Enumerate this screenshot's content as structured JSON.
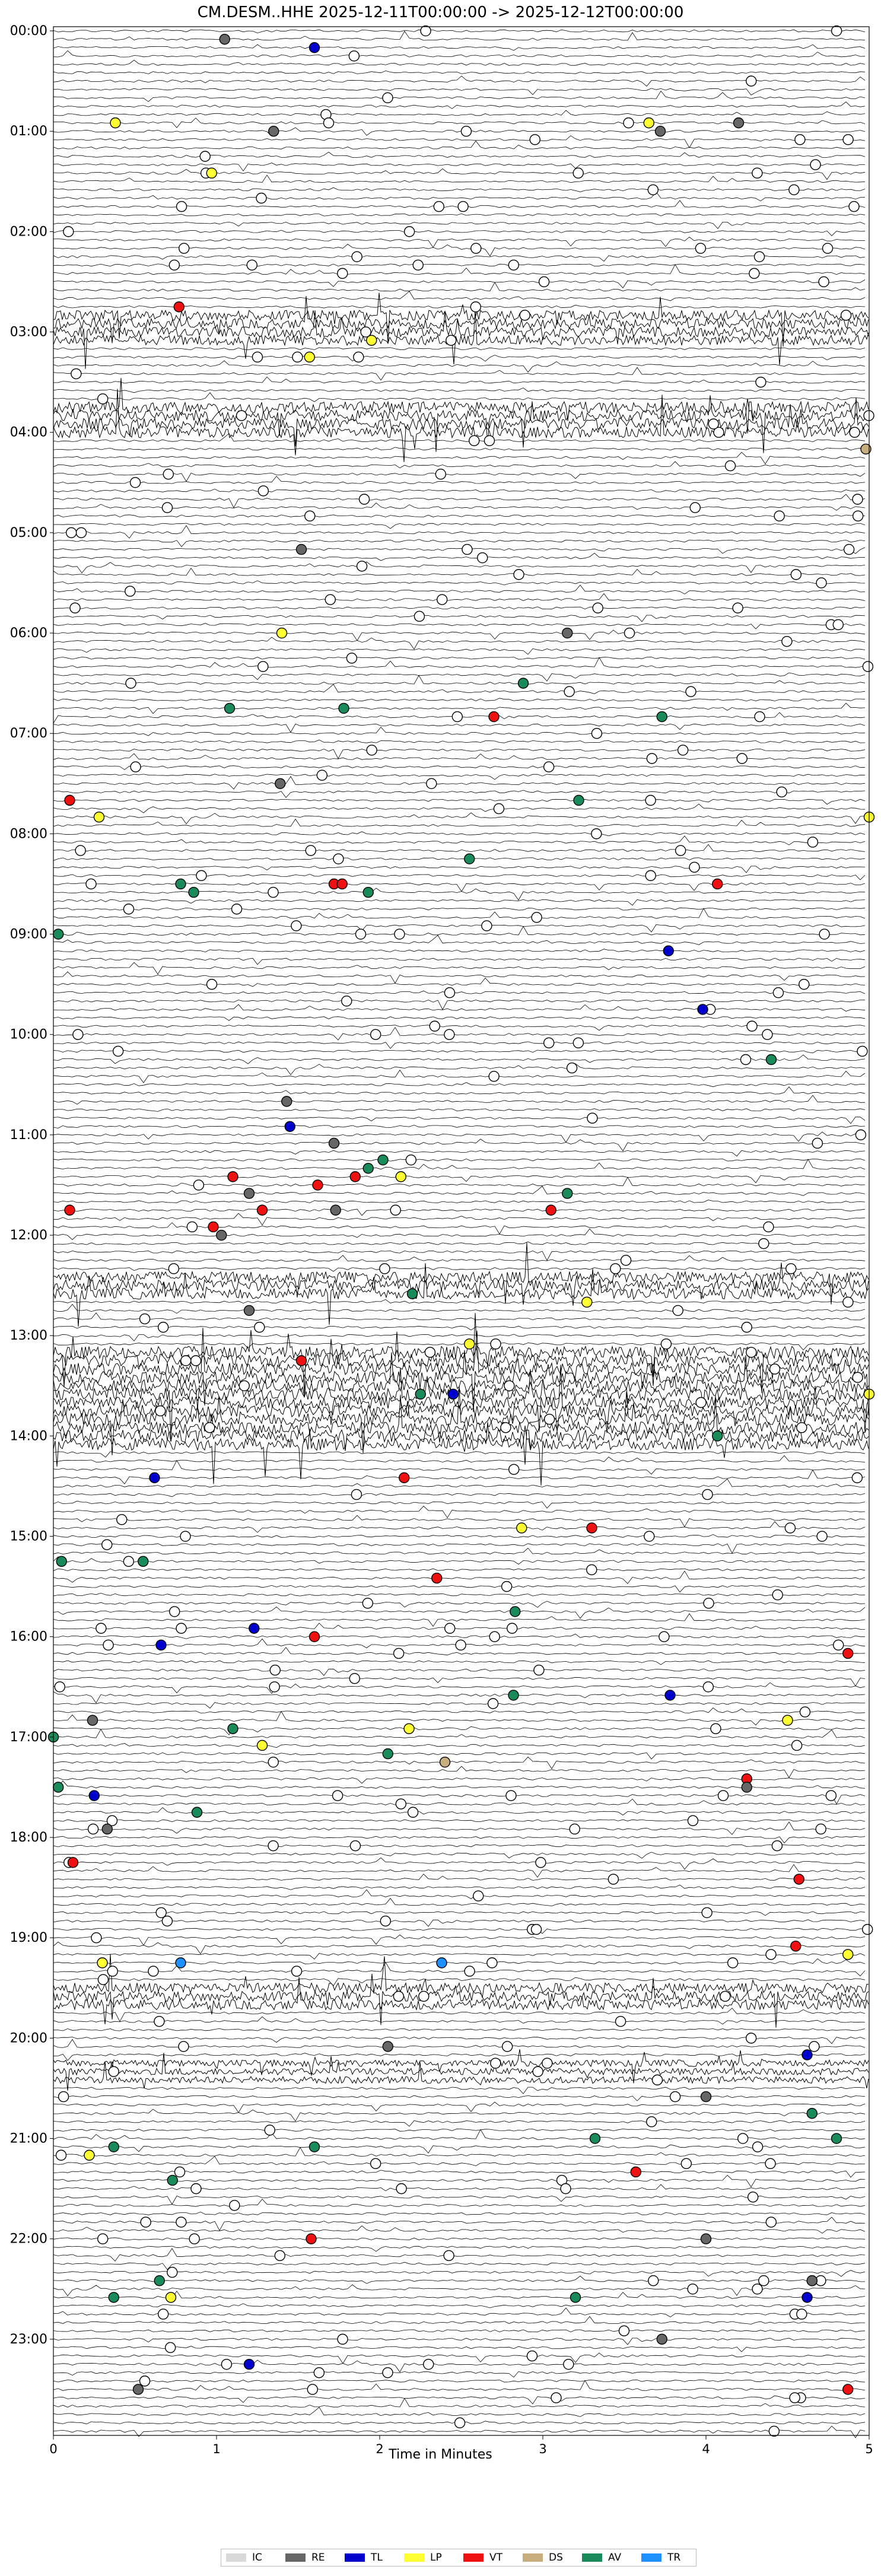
{
  "chart_data": {
    "type": "helicorder",
    "title": "CM.DESM..HHE  2025-12-11T00:00:00 -> 2025-12-12T00:00:00",
    "xlabel": "Time in Minutes",
    "x_ticks": [
      "0",
      "1",
      "2",
      "3",
      "4",
      "5"
    ],
    "xlim": [
      0,
      5
    ],
    "y_ticks": [
      "00:00",
      "01:00",
      "02:00",
      "03:00",
      "04:00",
      "05:00",
      "06:00",
      "07:00",
      "08:00",
      "09:00",
      "10:00",
      "11:00",
      "12:00",
      "13:00",
      "14:00",
      "15:00",
      "16:00",
      "17:00",
      "18:00",
      "19:00",
      "20:00",
      "21:00",
      "22:00",
      "23:00"
    ],
    "traces_per_hour": 12,
    "minutes_per_trace": 5,
    "legend": [
      {
        "code": "IC",
        "color": "#d9d9d9"
      },
      {
        "code": "RE",
        "color": "#666666"
      },
      {
        "code": "TL",
        "color": "#0000cc"
      },
      {
        "code": "LP",
        "color": "#ffff33"
      },
      {
        "code": "VT",
        "color": "#ee1111"
      },
      {
        "code": "DS",
        "color": "#c8ad7f"
      },
      {
        "code": "AV",
        "color": "#1a8a5a"
      },
      {
        "code": "TR",
        "color": "#1e90ff"
      }
    ],
    "activity_windows": [
      {
        "start": "02:50",
        "end": "03:05",
        "amplitude": 0.8
      },
      {
        "start": "03:45",
        "end": "04:00",
        "amplitude": 0.9
      },
      {
        "start": "12:25",
        "end": "12:35",
        "amplitude": 0.9
      },
      {
        "start": "13:10",
        "end": "14:05",
        "amplitude": 1.0
      },
      {
        "start": "19:30",
        "end": "19:40",
        "amplitude": 0.8
      },
      {
        "start": "20:15",
        "end": "20:25",
        "amplitude": 0.5
      }
    ],
    "events": [
      {
        "t": "00:05",
        "x": 1.05,
        "cls": "RE"
      },
      {
        "t": "00:10",
        "x": 1.6,
        "cls": "TL"
      },
      {
        "t": "00:55",
        "x": 0.38,
        "cls": "LP"
      },
      {
        "t": "00:55",
        "x": 3.65,
        "cls": "LP"
      },
      {
        "t": "00:55",
        "x": 4.2,
        "cls": "RE"
      },
      {
        "t": "01:00",
        "x": 1.35,
        "cls": "RE"
      },
      {
        "t": "01:00",
        "x": 3.72,
        "cls": "RE"
      },
      {
        "t": "01:25",
        "x": 0.97,
        "cls": "LP"
      },
      {
        "t": "02:45",
        "x": 0.77,
        "cls": "VT"
      },
      {
        "t": "03:05",
        "x": 1.95,
        "cls": "LP"
      },
      {
        "t": "03:15",
        "x": 1.57,
        "cls": "LP"
      },
      {
        "t": "04:10",
        "x": 4.98,
        "cls": "DS"
      },
      {
        "t": "05:10",
        "x": 1.52,
        "cls": "RE"
      },
      {
        "t": "06:00",
        "x": 1.4,
        "cls": "LP"
      },
      {
        "t": "06:00",
        "x": 3.15,
        "cls": "RE"
      },
      {
        "t": "06:30",
        "x": 2.88,
        "cls": "AV"
      },
      {
        "t": "06:45",
        "x": 1.08,
        "cls": "AV"
      },
      {
        "t": "06:45",
        "x": 1.78,
        "cls": "AV"
      },
      {
        "t": "06:50",
        "x": 2.7,
        "cls": "VT"
      },
      {
        "t": "06:50",
        "x": 3.73,
        "cls": "AV"
      },
      {
        "t": "07:30",
        "x": 1.39,
        "cls": "RE"
      },
      {
        "t": "07:40",
        "x": 0.1,
        "cls": "VT"
      },
      {
        "t": "07:40",
        "x": 3.22,
        "cls": "AV"
      },
      {
        "t": "07:50",
        "x": 0.28,
        "cls": "LP"
      },
      {
        "t": "07:50",
        "x": 5.0,
        "cls": "LP"
      },
      {
        "t": "08:15",
        "x": 2.55,
        "cls": "AV"
      },
      {
        "t": "08:30",
        "x": 0.78,
        "cls": "AV"
      },
      {
        "t": "08:30",
        "x": 1.72,
        "cls": "VT"
      },
      {
        "t": "08:30",
        "x": 1.77,
        "cls": "VT"
      },
      {
        "t": "08:30",
        "x": 4.07,
        "cls": "VT"
      },
      {
        "t": "08:35",
        "x": 0.86,
        "cls": "AV"
      },
      {
        "t": "08:35",
        "x": 1.93,
        "cls": "AV"
      },
      {
        "t": "09:00",
        "x": 0.03,
        "cls": "AV"
      },
      {
        "t": "09:10",
        "x": 3.77,
        "cls": "TL"
      },
      {
        "t": "09:45",
        "x": 3.98,
        "cls": "TL"
      },
      {
        "t": "10:15",
        "x": 4.4,
        "cls": "AV"
      },
      {
        "t": "10:40",
        "x": 1.43,
        "cls": "RE"
      },
      {
        "t": "10:55",
        "x": 1.45,
        "cls": "TL"
      },
      {
        "t": "11:05",
        "x": 1.72,
        "cls": "RE"
      },
      {
        "t": "11:15",
        "x": 2.02,
        "cls": "AV"
      },
      {
        "t": "11:20",
        "x": 1.93,
        "cls": "AV"
      },
      {
        "t": "11:25",
        "x": 1.1,
        "cls": "VT"
      },
      {
        "t": "11:25",
        "x": 1.85,
        "cls": "VT"
      },
      {
        "t": "11:25",
        "x": 2.13,
        "cls": "LP"
      },
      {
        "t": "11:30",
        "x": 1.62,
        "cls": "VT"
      },
      {
        "t": "11:35",
        "x": 1.2,
        "cls": "RE"
      },
      {
        "t": "11:35",
        "x": 3.15,
        "cls": "AV"
      },
      {
        "t": "11:45",
        "x": 0.1,
        "cls": "VT"
      },
      {
        "t": "11:45",
        "x": 1.28,
        "cls": "VT"
      },
      {
        "t": "11:45",
        "x": 1.73,
        "cls": "RE"
      },
      {
        "t": "11:45",
        "x": 3.05,
        "cls": "VT"
      },
      {
        "t": "11:55",
        "x": 0.98,
        "cls": "VT"
      },
      {
        "t": "12:00",
        "x": 1.03,
        "cls": "RE"
      },
      {
        "t": "12:35",
        "x": 2.2,
        "cls": "AV"
      },
      {
        "t": "12:40",
        "x": 3.27,
        "cls": "LP"
      },
      {
        "t": "12:45",
        "x": 1.2,
        "cls": "RE"
      },
      {
        "t": "13:05",
        "x": 2.55,
        "cls": "LP"
      },
      {
        "t": "13:15",
        "x": 1.52,
        "cls": "VT"
      },
      {
        "t": "13:35",
        "x": 2.25,
        "cls": "AV"
      },
      {
        "t": "13:35",
        "x": 2.45,
        "cls": "TL"
      },
      {
        "t": "13:35",
        "x": 5.0,
        "cls": "LP"
      },
      {
        "t": "14:00",
        "x": 4.07,
        "cls": "AV"
      },
      {
        "t": "14:25",
        "x": 0.62,
        "cls": "TL"
      },
      {
        "t": "14:25",
        "x": 2.15,
        "cls": "VT"
      },
      {
        "t": "14:55",
        "x": 2.87,
        "cls": "LP"
      },
      {
        "t": "14:55",
        "x": 3.3,
        "cls": "VT"
      },
      {
        "t": "15:15",
        "x": 0.05,
        "cls": "AV"
      },
      {
        "t": "15:15",
        "x": 0.55,
        "cls": "AV"
      },
      {
        "t": "15:25",
        "x": 2.35,
        "cls": "VT"
      },
      {
        "t": "15:45",
        "x": 2.83,
        "cls": "AV"
      },
      {
        "t": "15:55",
        "x": 1.23,
        "cls": "TL"
      },
      {
        "t": "16:00",
        "x": 1.6,
        "cls": "VT"
      },
      {
        "t": "16:05",
        "x": 0.66,
        "cls": "TL"
      },
      {
        "t": "16:10",
        "x": 4.87,
        "cls": "VT"
      },
      {
        "t": "16:35",
        "x": 3.78,
        "cls": "TL"
      },
      {
        "t": "16:35",
        "x": 2.82,
        "cls": "AV"
      },
      {
        "t": "16:50",
        "x": 0.24,
        "cls": "RE"
      },
      {
        "t": "16:50",
        "x": 4.5,
        "cls": "LP"
      },
      {
        "t": "16:55",
        "x": 1.1,
        "cls": "AV"
      },
      {
        "t": "16:55",
        "x": 2.18,
        "cls": "LP"
      },
      {
        "t": "17:00",
        "x": 0.0,
        "cls": "AV"
      },
      {
        "t": "17:05",
        "x": 1.28,
        "cls": "LP"
      },
      {
        "t": "17:10",
        "x": 2.05,
        "cls": "AV"
      },
      {
        "t": "17:15",
        "x": 2.4,
        "cls": "DS"
      },
      {
        "t": "17:25",
        "x": 4.25,
        "cls": "VT"
      },
      {
        "t": "17:30",
        "x": 0.03,
        "cls": "AV"
      },
      {
        "t": "17:30",
        "x": 4.25,
        "cls": "RE"
      },
      {
        "t": "17:35",
        "x": 0.25,
        "cls": "TL"
      },
      {
        "t": "17:45",
        "x": 0.88,
        "cls": "AV"
      },
      {
        "t": "17:55",
        "x": 0.33,
        "cls": "RE"
      },
      {
        "t": "18:15",
        "x": 0.12,
        "cls": "VT"
      },
      {
        "t": "18:25",
        "x": 4.57,
        "cls": "VT"
      },
      {
        "t": "19:05",
        "x": 4.55,
        "cls": "VT"
      },
      {
        "t": "19:10",
        "x": 4.87,
        "cls": "LP"
      },
      {
        "t": "19:15",
        "x": 0.3,
        "cls": "LP"
      },
      {
        "t": "19:15",
        "x": 2.38,
        "cls": "TR"
      },
      {
        "t": "19:15",
        "x": 0.78,
        "cls": "TR"
      },
      {
        "t": "20:05",
        "x": 2.05,
        "cls": "RE"
      },
      {
        "t": "20:10",
        "x": 4.62,
        "cls": "TL"
      },
      {
        "t": "20:35",
        "x": 4.0,
        "cls": "RE"
      },
      {
        "t": "20:45",
        "x": 4.65,
        "cls": "AV"
      },
      {
        "t": "21:00",
        "x": 3.32,
        "cls": "AV"
      },
      {
        "t": "21:00",
        "x": 4.8,
        "cls": "AV"
      },
      {
        "t": "21:05",
        "x": 0.37,
        "cls": "AV"
      },
      {
        "t": "21:05",
        "x": 1.6,
        "cls": "AV"
      },
      {
        "t": "21:10",
        "x": 0.22,
        "cls": "LP"
      },
      {
        "t": "21:20",
        "x": 3.57,
        "cls": "VT"
      },
      {
        "t": "21:25",
        "x": 0.73,
        "cls": "AV"
      },
      {
        "t": "22:00",
        "x": 1.58,
        "cls": "VT"
      },
      {
        "t": "22:00",
        "x": 4.0,
        "cls": "RE"
      },
      {
        "t": "22:25",
        "x": 0.65,
        "cls": "AV"
      },
      {
        "t": "22:25",
        "x": 4.65,
        "cls": "RE"
      },
      {
        "t": "22:35",
        "x": 0.37,
        "cls": "AV"
      },
      {
        "t": "22:35",
        "x": 0.72,
        "cls": "LP"
      },
      {
        "t": "22:35",
        "x": 3.2,
        "cls": "AV"
      },
      {
        "t": "22:35",
        "x": 4.62,
        "cls": "TL"
      },
      {
        "t": "23:00",
        "x": 3.73,
        "cls": "RE"
      },
      {
        "t": "23:15",
        "x": 1.2,
        "cls": "TL"
      },
      {
        "t": "23:30",
        "x": 0.52,
        "cls": "RE"
      },
      {
        "t": "23:30",
        "x": 4.87,
        "cls": "VT"
      }
    ],
    "open_marker_count": 320
  }
}
